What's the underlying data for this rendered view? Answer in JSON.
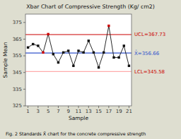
{
  "chart_data": {
    "type": "line",
    "title": "Xbar Chart of Compressive Strength (Kg/ cm2)",
    "x_label": "Sample",
    "y_label": "Sample Mean",
    "caption": "Fig. 2 Standards  X̄  chart for the concrete compressive strength",
    "x": [
      1,
      2,
      3,
      4,
      5,
      6,
      7,
      8,
      9,
      10,
      11,
      12,
      13,
      14,
      15,
      16,
      17,
      18,
      19,
      20,
      21
    ],
    "values": [
      360,
      362,
      361,
      357,
      368,
      356,
      351,
      357,
      358,
      349,
      358,
      357,
      364,
      357,
      348,
      357,
      373,
      354,
      354,
      361,
      349
    ],
    "color": "#111111",
    "colors": [
      "#111111",
      "#111111",
      "#111111",
      "#cc0000",
      "#cc0000",
      "#111111",
      "#111111",
      "#111111",
      "#111111",
      "#111111",
      "#111111",
      "#111111",
      "#111111",
      "#111111",
      "#111111",
      "#111111",
      "#cc0000",
      "#111111",
      "#111111",
      "#111111",
      "#111111"
    ],
    "marker": "square",
    "reference_lines": [
      {
        "value": 367.73,
        "label": "UCL=367.73",
        "color": "#cc0000",
        "label_color": "#cc0000"
      },
      {
        "value": 356.66,
        "label": "X̄=356.66",
        "color": "#3355cc",
        "label_color": "#3355cc"
      },
      {
        "value": 345.58,
        "label": "LCL=345.58",
        "color": "#ffaaaa",
        "label_color": "#cc0000"
      }
    ],
    "xlim": [
      0.5,
      21.5
    ],
    "ylim": [
      325,
      380
    ],
    "xticks": [
      1,
      3,
      5,
      7,
      9,
      11,
      13,
      15,
      17,
      19,
      21
    ],
    "yticks": [
      325,
      335,
      345,
      355,
      365,
      375
    ],
    "background": "#deded0",
    "plot_background": "#ffffff"
  }
}
